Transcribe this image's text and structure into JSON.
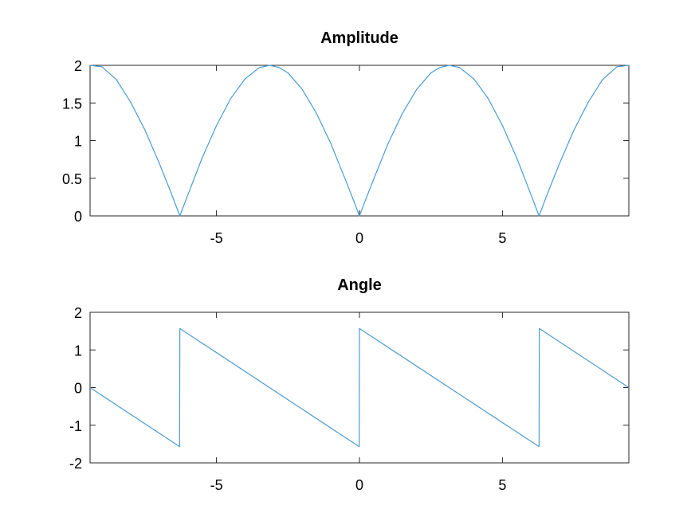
{
  "chart_data": [
    {
      "type": "line",
      "title": "Amplitude",
      "xlabel": "",
      "ylabel": "",
      "xlim": [
        -9.42,
        9.42
      ],
      "ylim": [
        0,
        2
      ],
      "xticks": [
        -5,
        0,
        5
      ],
      "xtick_labels": [
        "-5",
        "0",
        "5"
      ],
      "yticks": [
        0,
        0.5,
        1,
        1.5,
        2
      ],
      "ytick_labels": [
        "0",
        "0.5",
        "1",
        "1.5",
        "2"
      ],
      "grid": false,
      "series": [
        {
          "color": "#4b9bd2",
          "x": [
            -9.42,
            -9.0,
            -8.5,
            -8.0,
            -7.5,
            -7.0,
            -6.6,
            -6.28,
            -6.0,
            -5.5,
            -5.0,
            -4.5,
            -4.0,
            -3.5,
            -3.14,
            -2.8,
            -2.5,
            -2.0,
            -1.5,
            -1.0,
            -0.5,
            -0.2,
            0.0,
            0.2,
            0.5,
            1.0,
            1.5,
            2.0,
            2.5,
            2.8,
            3.14,
            3.5,
            4.0,
            4.5,
            5.0,
            5.5,
            6.0,
            6.28,
            6.6,
            7.0,
            7.5,
            8.0,
            8.5,
            9.0,
            9.42
          ],
          "y": [
            2.0,
            1.98,
            1.81,
            1.51,
            1.14,
            0.7,
            0.32,
            0.0,
            0.28,
            0.77,
            1.2,
            1.56,
            1.82,
            1.97,
            2.0,
            1.97,
            1.9,
            1.68,
            1.36,
            0.96,
            0.49,
            0.2,
            0.0,
            0.2,
            0.49,
            0.96,
            1.36,
            1.68,
            1.9,
            1.97,
            2.0,
            1.97,
            1.82,
            1.56,
            1.2,
            0.77,
            0.28,
            0.0,
            0.32,
            0.7,
            1.14,
            1.51,
            1.81,
            1.98,
            2.0
          ]
        }
      ]
    },
    {
      "type": "line",
      "title": "Angle",
      "xlabel": "",
      "ylabel": "",
      "xlim": [
        -9.42,
        9.42
      ],
      "ylim": [
        -2,
        2
      ],
      "xticks": [
        -5,
        0,
        5
      ],
      "xtick_labels": [
        "-5",
        "0",
        "5"
      ],
      "yticks": [
        -2,
        -1,
        0,
        1,
        2
      ],
      "ytick_labels": [
        "-2",
        "-1",
        "0",
        "1",
        "2"
      ],
      "grid": false,
      "series": [
        {
          "color": "#4b9bd2",
          "x": [
            -9.42,
            -6.29,
            -6.28,
            -0.01,
            0.0,
            6.28,
            6.29,
            9.42
          ],
          "y": [
            0.0,
            -1.57,
            1.57,
            -1.57,
            1.57,
            -1.57,
            1.57,
            0.0
          ]
        }
      ]
    }
  ]
}
